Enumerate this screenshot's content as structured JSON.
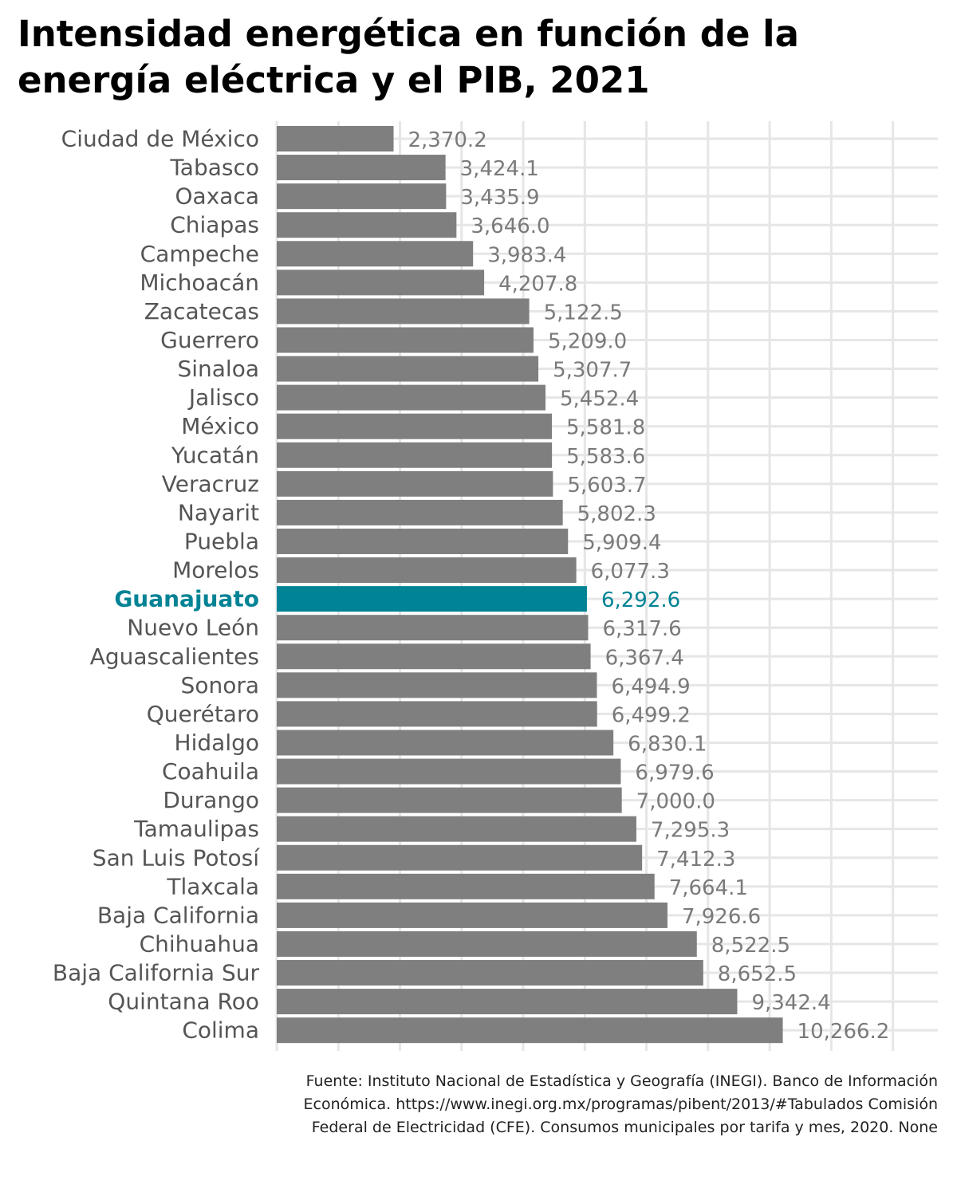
{
  "title": "Intensidad energética en función de la energía eléctrica y el PIB, 2021",
  "source": "Fuente: Instituto Nacional de Estadística y Geografía (INEGI). Banco de Información Económica. https://www.inegi.org.mx/programas/pibent/2013/#Tabulados Comisión Federal de Electricidad (CFE). Consumos municipales por tarifa y mes, 2020. None",
  "colors": {
    "bar": "#7f7f7f",
    "highlight": "#008395",
    "grid": "#e6e6e6",
    "label": "#555555",
    "value": "#7a7a7a"
  },
  "chart_data": {
    "type": "bar",
    "orientation": "horizontal",
    "highlight": "Guanajuato",
    "xlim": [
      0,
      12500
    ],
    "grid": true,
    "categories": [
      "Ciudad de México",
      "Tabasco",
      "Oaxaca",
      "Chiapas",
      "Campeche",
      "Michoacán",
      "Zacatecas",
      "Guerrero",
      "Sinaloa",
      "Jalisco",
      "México",
      "Yucatán",
      "Veracruz",
      "Nayarit",
      "Puebla",
      "Morelos",
      "Guanajuato",
      "Nuevo León",
      "Aguascalientes",
      "Sonora",
      "Querétaro",
      "Hidalgo",
      "Coahuila",
      "Durango",
      "Tamaulipas",
      "San Luis Potosí",
      "Tlaxcala",
      "Baja California",
      "Chihuahua",
      "Baja California Sur",
      "Quintana Roo",
      "Colima"
    ],
    "values": [
      2370.2,
      3424.1,
      3435.9,
      3646.0,
      3983.4,
      4207.8,
      5122.5,
      5209.0,
      5307.7,
      5452.4,
      5581.8,
      5583.6,
      5603.7,
      5802.3,
      5909.4,
      6077.3,
      6292.6,
      6317.6,
      6367.4,
      6494.9,
      6499.2,
      6830.1,
      6979.6,
      7000.0,
      7295.3,
      7412.3,
      7664.1,
      7926.6,
      8522.5,
      8652.5,
      9342.4,
      10266.2
    ],
    "value_labels": [
      "2,370.2",
      "3,424.1",
      "3,435.9",
      "3,646.0",
      "3,983.4",
      "4,207.8",
      "5,122.5",
      "5,209.0",
      "5,307.7",
      "5,452.4",
      "5,581.8",
      "5,583.6",
      "5,603.7",
      "5,802.3",
      "5,909.4",
      "6,077.3",
      "6,292.6",
      "6,317.6",
      "6,367.4",
      "6,494.9",
      "6,499.2",
      "6,830.1",
      "6,979.6",
      "7,000.0",
      "7,295.3",
      "7,412.3",
      "7,664.1",
      "7,926.6",
      "8,522.5",
      "8,652.5",
      "9,342.4",
      "10,266.2"
    ]
  }
}
